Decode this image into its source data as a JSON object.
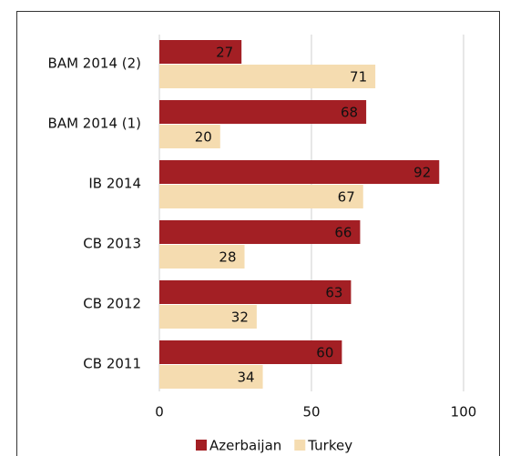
{
  "chart_data": {
    "type": "hbar",
    "categories": [
      "BAM 2014 (2)",
      "BAM 2014 (1)",
      "IB 2014",
      "CB 2013",
      "CB 2012",
      "CB 2011"
    ],
    "series": [
      {
        "name": "Azerbaijan",
        "color": "#a31f24",
        "values": [
          27,
          68,
          92,
          66,
          63,
          60
        ]
      },
      {
        "name": "Turkey",
        "color": "#f5dcb0",
        "values": [
          71,
          20,
          67,
          28,
          32,
          34
        ]
      }
    ],
    "xlim": [
      0,
      100
    ],
    "xticks": [
      0,
      50,
      100
    ],
    "grid": true,
    "legend": "bottom"
  }
}
